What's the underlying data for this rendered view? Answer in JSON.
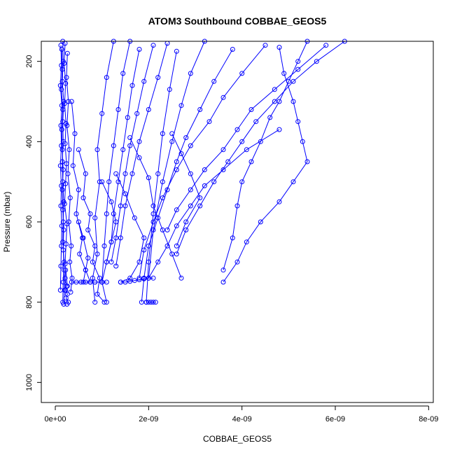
{
  "chart_data": {
    "type": "line",
    "title": "ATOM3 Southbound COBBAE_GEOS5",
    "xlabel": "COBBAE_GEOS5",
    "ylabel": "Pressure (mbar)",
    "xlim": [
      -3e-10,
      8.1e-09
    ],
    "ylim": [
      1050,
      150
    ],
    "y_reversed": true,
    "x_ticks": [
      0,
      2e-09,
      4e-09,
      6e-09,
      8e-09
    ],
    "x_tick_labels": [
      "0e+00",
      "2e-09",
      "4e-09",
      "6e-09",
      "8e-09"
    ],
    "y_ticks": [
      200,
      400,
      600,
      800,
      1000
    ],
    "y_tick_labels": [
      "200",
      "400",
      "600",
      "800",
      "1000"
    ],
    "grid": false,
    "legend": "none",
    "marker": "open-circle",
    "color": "#0000ff",
    "series": [
      {
        "x": [
          1.6e-10,
          1.7e-10,
          1.5e-10,
          1.8e-10,
          1.6e-10,
          1.7e-10,
          1.5e-10,
          1.6e-10,
          1.8e-10,
          1.7e-10,
          1.6e-10,
          1.9e-10,
          1.7e-10,
          1.6e-10
        ],
        "y": [
          150,
          200,
          250,
          300,
          350,
          400,
          450,
          500,
          550,
          600,
          650,
          700,
          750,
          800
        ]
      },
      {
        "x": [
          1.2e-10,
          1.3e-10,
          1.1e-10,
          1.4e-10,
          1.2e-10,
          1.3e-10,
          1.1e-10,
          1.3e-10,
          1.2e-10,
          1.4e-10,
          1.3e-10,
          1.2e-10,
          1.1e-10
        ],
        "y": [
          160,
          210,
          260,
          310,
          360,
          410,
          460,
          510,
          560,
          610,
          660,
          710,
          770
        ]
      },
      {
        "x": [
          2.1e-10,
          1.9e-10,
          2.2e-10,
          2e-10,
          2.3e-10,
          2.1e-10,
          2.4e-10,
          2.2e-10,
          2e-10,
          2.5e-10,
          2.3e-10,
          2.1e-10,
          2.6e-10
        ],
        "y": [
          155,
          205,
          255,
          305,
          355,
          405,
          455,
          505,
          555,
          605,
          655,
          705,
          760
        ]
      },
      {
        "x": [
          1.4e-10,
          1.5e-10,
          1.3e-10,
          1.6e-10,
          1.4e-10,
          1.5e-10,
          1.7e-10,
          1.5e-10,
          1.6e-10,
          1.8e-10,
          1.7e-10,
          1.9e-10,
          2e-10,
          1.8e-10
        ],
        "y": [
          170,
          220,
          270,
          320,
          370,
          420,
          470,
          520,
          570,
          620,
          670,
          720,
          770,
          805
        ]
      },
      {
        "x": [
          2.6e-10,
          2.4e-10,
          2.8e-10,
          2.5e-10,
          3e-10,
          2.7e-10,
          3.2e-10,
          2.9e-10,
          3.4e-10,
          3.1e-10,
          3.6e-10,
          3.3e-10
        ],
        "y": [
          180,
          240,
          300,
          360,
          420,
          480,
          540,
          600,
          660,
          700,
          740,
          775
        ]
      },
      {
        "x": [
          3.5e-10,
          4.2e-10,
          3.8e-10,
          5e-10,
          4.5e-10,
          5.8e-10,
          5.2e-10,
          6.5e-10,
          6e-10,
          7.5e-10
        ],
        "y": [
          300,
          380,
          460,
          520,
          580,
          640,
          680,
          720,
          750,
          750
        ]
      },
      {
        "x": [
          5e-10,
          6.5e-10,
          6e-10,
          7.5e-10,
          7e-10,
          8.5e-10,
          8e-10,
          9.5e-10,
          9e-10,
          1.05e-09
        ],
        "y": [
          420,
          480,
          540,
          580,
          620,
          660,
          700,
          740,
          780,
          800
        ]
      },
      {
        "x": [
          1.25e-09,
          1.1e-09,
          1e-09,
          9e-10,
          9.5e-10,
          8.5e-10,
          9e-10,
          8e-10,
          8.5e-10
        ],
        "y": [
          150,
          240,
          330,
          420,
          500,
          590,
          680,
          740,
          800
        ]
      },
      {
        "x": [
          1.6e-09,
          1.45e-09,
          1.35e-09,
          1.25e-09,
          1.15e-09,
          1.1e-09,
          1.05e-09,
          1e-09
        ],
        "y": [
          150,
          230,
          320,
          410,
          500,
          580,
          660,
          750
        ]
      },
      {
        "x": [
          1.8e-09,
          1.65e-09,
          1.55e-09,
          1.45e-09,
          1.35e-09,
          1.25e-09,
          1.2e-09,
          1.1e-09
        ],
        "y": [
          170,
          260,
          340,
          420,
          500,
          580,
          650,
          700
        ]
      },
      {
        "x": [
          2.1e-09,
          1.9e-09,
          1.75e-09,
          1.6e-09,
          1.5e-09,
          1.4e-09,
          1.3e-09,
          1.2e-09
        ],
        "y": [
          160,
          250,
          330,
          410,
          480,
          560,
          640,
          700
        ]
      },
      {
        "x": [
          2.4e-09,
          2.2e-09,
          2e-09,
          1.8e-09,
          1.65e-09,
          1.5e-09,
          1.4e-09,
          1.3e-09
        ],
        "y": [
          155,
          240,
          320,
          400,
          480,
          560,
          640,
          710
        ]
      },
      {
        "x": [
          5.4e-09,
          5.2e-09,
          5e-09,
          4.8e-09,
          4.6e-09,
          4.4e-09,
          4.2e-09,
          4e-09,
          3.9e-09,
          3.8e-09,
          3.6e-09
        ],
        "y": [
          150,
          200,
          250,
          300,
          340,
          400,
          450,
          500,
          560,
          640,
          720
        ]
      },
      {
        "x": [
          6.2e-09,
          5.6e-09,
          5.1e-09,
          4.7e-09,
          4.3e-09,
          4e-09,
          3.7e-09,
          3.4e-09,
          3.1e-09,
          2.8e-09,
          2.6e-09
        ],
        "y": [
          150,
          200,
          250,
          300,
          350,
          400,
          450,
          500,
          560,
          620,
          680
        ]
      },
      {
        "x": [
          4.8e-09,
          4.9e-09,
          5.1e-09,
          5.2e-09,
          5.3e-09,
          5.4e-09,
          5.1e-09,
          4.8e-09,
          4.4e-09,
          4.1e-09,
          3.9e-09,
          3.6e-09
        ],
        "y": [
          165,
          230,
          300,
          350,
          400,
          450,
          500,
          550,
          600,
          650,
          700,
          750
        ]
      },
      {
        "x": [
          5.8e-09,
          5.2e-09,
          4.7e-09,
          4.2e-09,
          3.9e-09,
          3.6e-09,
          3.2e-09,
          2.9e-09,
          2.6e-09,
          2.4e-09
        ],
        "y": [
          160,
          220,
          270,
          320,
          370,
          420,
          470,
          520,
          570,
          620
        ]
      },
      {
        "x": [
          4.5e-09,
          4e-09,
          3.6e-09,
          3.3e-09,
          2.9e-09,
          2.6e-09,
          2.3e-09,
          2.1e-09,
          1.9e-09,
          1.8e-09
        ],
        "y": [
          160,
          230,
          290,
          350,
          410,
          470,
          540,
          600,
          670,
          740
        ]
      },
      {
        "x": [
          3.8e-09,
          3.4e-09,
          3.1e-09,
          2.8e-09,
          2.6e-09,
          2.4e-09,
          2.2e-09,
          2e-09,
          1.9e-09,
          1.85e-09
        ],
        "y": [
          170,
          250,
          320,
          390,
          450,
          520,
          590,
          660,
          740,
          800
        ]
      },
      {
        "x": [
          3.2e-09,
          2.9e-09,
          2.7e-09,
          2.5e-09,
          2.3e-09,
          2.1e-09,
          2e-09
        ],
        "y": [
          150,
          230,
          310,
          400,
          500,
          620,
          740
        ]
      },
      {
        "x": [
          2.6e-09,
          2.45e-09,
          2.3e-09,
          2.2e-09,
          2.1e-09,
          2e-09,
          1.95e-09
        ],
        "y": [
          175,
          270,
          380,
          480,
          580,
          700,
          800
        ]
      },
      {
        "x": [
          4.8e-09,
          4.1e-09,
          3.6e-09,
          3.2e-09,
          2.9e-09,
          2.6e-09,
          2.4e-09,
          2.2e-09,
          2e-09
        ],
        "y": [
          370,
          420,
          470,
          510,
          560,
          610,
          660,
          700,
          740
        ]
      },
      {
        "x": [
          2.5e-09,
          2.7e-09,
          2.9e-09,
          3.1e-09,
          2.8e-09,
          2.6e-09
        ],
        "y": [
          380,
          430,
          480,
          540,
          600,
          660
        ]
      },
      {
        "x": [
          1.6e-09,
          1.8e-09,
          2e-09,
          2.1e-09,
          2.3e-09,
          2.5e-09,
          2.7e-09
        ],
        "y": [
          390,
          440,
          490,
          560,
          620,
          680,
          740
        ]
      },
      {
        "x": [
          1.3e-09,
          1.5e-09,
          1.7e-09,
          1.9e-09,
          1.8e-09,
          1.6e-09,
          1.4e-09
        ],
        "y": [
          480,
          530,
          590,
          640,
          700,
          740,
          750
        ]
      },
      {
        "x": [
          1e-09,
          1.2e-09,
          1.3e-09,
          1.2e-09,
          1.1e-09,
          1e-09,
          1.1e-09
        ],
        "y": [
          500,
          550,
          600,
          650,
          700,
          750,
          800
        ]
      },
      {
        "x": [
          5e-10,
          6e-10,
          7e-10,
          6.5e-10,
          7.5e-10,
          8.5e-10
        ],
        "y": [
          600,
          640,
          690,
          720,
          750,
          750
        ]
      },
      {
        "x": [
          2.2e-10,
          2.1e-10,
          2.4e-10,
          2.2e-10,
          2.6e-10,
          2.3e-10,
          2.8e-10,
          2.5e-10
        ],
        "y": [
          720,
          740,
          760,
          770,
          780,
          790,
          800,
          805
        ]
      },
      {
        "x": [
          1.95e-09,
          2e-09,
          2.05e-09,
          2.1e-09,
          2.15e-09
        ],
        "y": [
          800,
          800,
          800,
          800,
          800
        ]
      },
      {
        "x": [
          3.5e-10,
          4.5e-10,
          5.5e-10,
          6.5e-10,
          7.5e-10,
          8.5e-10,
          1e-09,
          1.1e-09
        ],
        "y": [
          750,
          750,
          750,
          750,
          750,
          750,
          750,
          750
        ]
      },
      {
        "x": [
          1.4e-09,
          1.5e-09,
          1.6e-09,
          1.7e-09,
          1.8e-09,
          1.9e-09,
          2e-09,
          2.1e-09
        ],
        "y": [
          750,
          750,
          748,
          746,
          744,
          742,
          740,
          740
        ]
      }
    ]
  }
}
